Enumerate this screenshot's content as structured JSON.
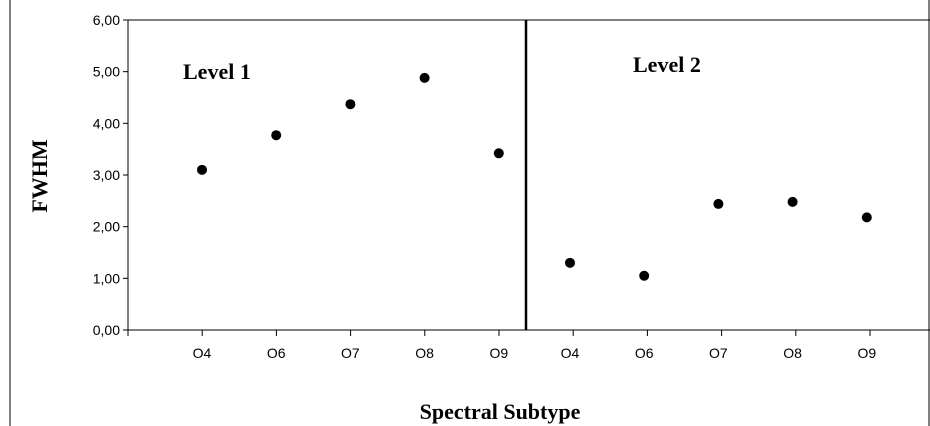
{
  "chart_data": {
    "type": "scatter",
    "xlabel": "Spectral Subtype",
    "ylabel": "FWHM",
    "ylim": [
      0,
      6
    ],
    "yticks": [
      "0,00",
      "1,00",
      "2,00",
      "3,00",
      "4,00",
      "5,00",
      "6,00"
    ],
    "categories": [
      "O4",
      "O6",
      "O7",
      "O8",
      "O9",
      "O4",
      "O6",
      "O7",
      "O8",
      "O9"
    ],
    "values": [
      3.1,
      3.77,
      4.37,
      4.88,
      3.42,
      1.3,
      1.05,
      2.44,
      2.48,
      2.18
    ],
    "grid": false,
    "annotations": [
      "Level 1",
      "Level 2"
    ],
    "divider_after_index": 4,
    "marker_color": "#000000"
  }
}
